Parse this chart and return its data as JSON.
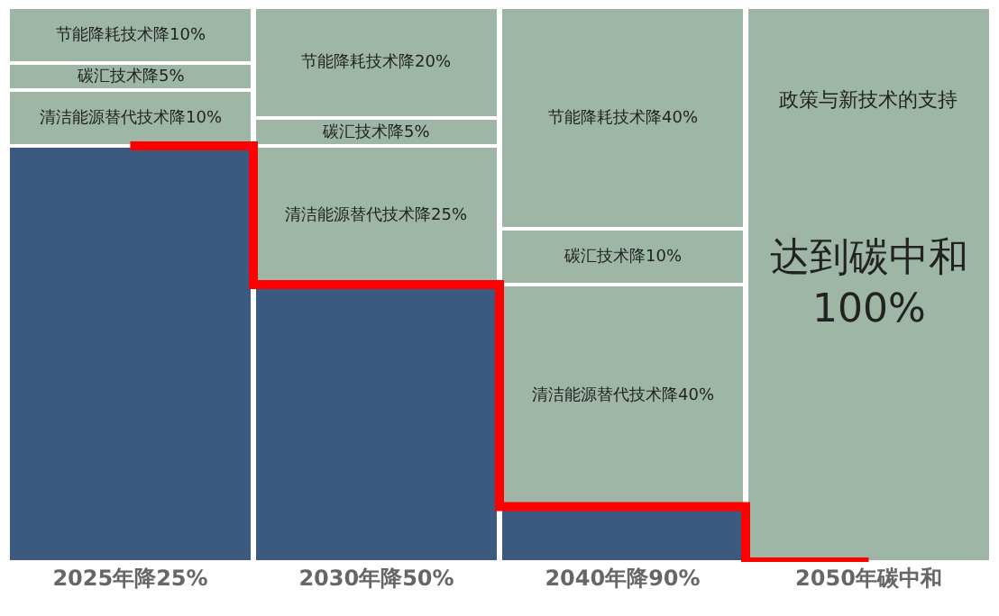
{
  "chart_data": {
    "type": "bar",
    "stacked": true,
    "categories": [
      "2025年降25%",
      "2030年降50%",
      "2040年降90%",
      "2050年碳中和"
    ],
    "series": [
      {
        "color": "#3c5a7f",
        "values": [
          75,
          50,
          10,
          null
        ]
      },
      {
        "color": "#9db6a6",
        "values": [
          10,
          25,
          40,
          null
        ],
        "value_labels": [
          "清洁能源替代技术降10%",
          "清洁能源替代技术降25%",
          "清洁能源替代技术降40%",
          null
        ]
      },
      {
        "color": "#9db6a6",
        "values": [
          5,
          5,
          10,
          null
        ],
        "value_labels": [
          "碳汇技术降5%",
          "碳汇技术降5%",
          "碳汇技术降10%",
          null
        ]
      },
      {
        "color": "#9db6a6",
        "values": [
          10,
          20,
          40,
          null
        ],
        "value_labels": [
          "节能降耗技术降10%",
          "节能降耗技术降20%",
          "节能降耗技术降40%",
          null
        ]
      },
      {
        "color": "#9db6a6",
        "values": [
          null,
          null,
          null,
          100
        ],
        "value_labels": [
          null,
          null,
          null,
          "达到碳中和100%"
        ]
      },
      {
        "type": "step",
        "color": "#ff0000",
        "values": [
          75,
          50,
          10,
          0
        ]
      }
    ],
    "annotations": [
      "政策与新技术的支持"
    ],
    "ylim": [
      0,
      100
    ],
    "tick_labels": "x"
  }
}
